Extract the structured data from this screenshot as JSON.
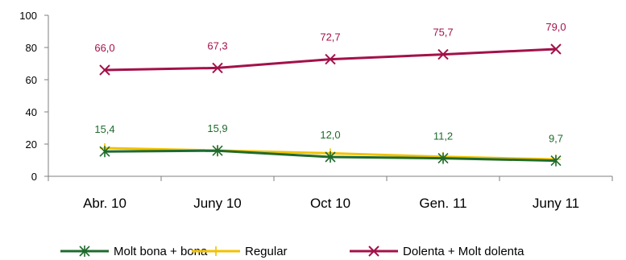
{
  "chart_data": {
    "type": "line",
    "categories": [
      "Abr. 10",
      "Juny 10",
      "Oct 10",
      "Gen. 11",
      "Juny 11"
    ],
    "ylim": [
      0,
      100
    ],
    "yticks": [
      0,
      20,
      40,
      60,
      80,
      100
    ],
    "grid": false,
    "legend_position": "bottom",
    "series": [
      {
        "name": "Molt bona + bona",
        "values": [
          15.4,
          15.9,
          12.0,
          11.2,
          9.7
        ],
        "labels": [
          "15,4",
          "15,9",
          "12,0",
          "11,2",
          "9,7"
        ],
        "color": "#1f6b2c",
        "marker": "asterisk"
      },
      {
        "name": "Regular",
        "values": [
          17.5,
          16.0,
          14.3,
          12.1,
          10.5
        ],
        "color": "#f2c200",
        "marker": "plus"
      },
      {
        "name": "Dolenta + Molt dolenta",
        "values": [
          66.0,
          67.3,
          72.7,
          75.7,
          79.0
        ],
        "labels": [
          "66,0",
          "67,3",
          "72,7",
          "75,7",
          "79,0"
        ],
        "color": "#a3114a",
        "marker": "cross"
      }
    ]
  }
}
